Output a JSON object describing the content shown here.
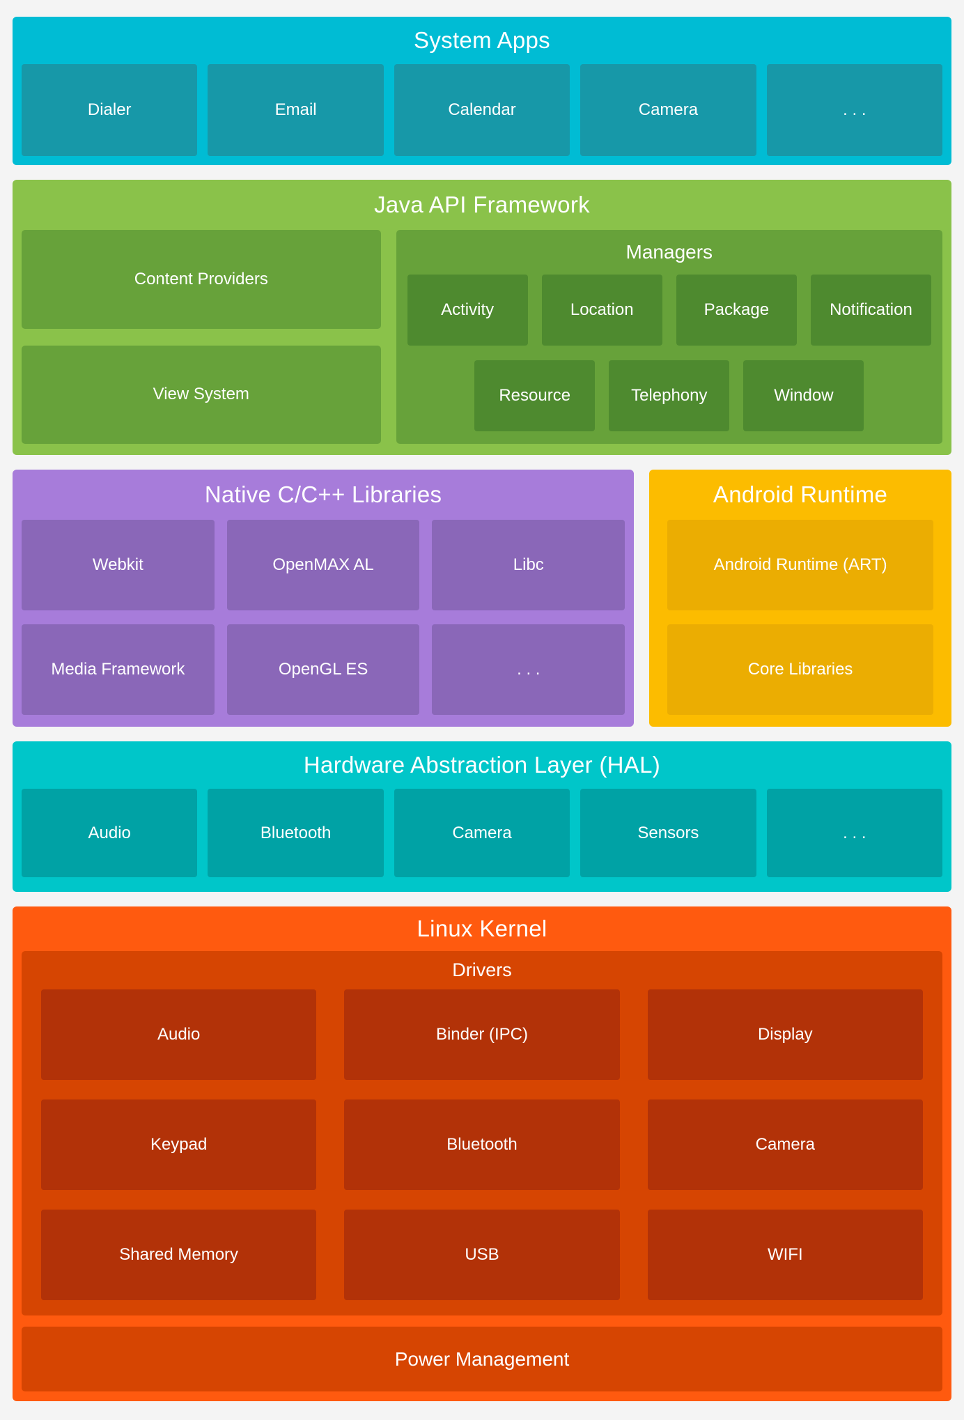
{
  "page": {
    "background": "#f4f4f4"
  },
  "sections": {
    "system_apps": {
      "title": "System Apps",
      "colors": {
        "bg": "#00bcd4",
        "box": "#1798a8"
      },
      "boxes": [
        "Dialer",
        "Email",
        "Calendar",
        "Camera",
        ". . ."
      ]
    },
    "java_api": {
      "title": "Java API Framework",
      "colors": {
        "bg": "#8ac24a",
        "panel": "#67a23a",
        "box": "#4e8a2f"
      },
      "left_boxes": [
        "Content Providers",
        "View System"
      ],
      "managers": {
        "title": "Managers",
        "row1": [
          "Activity",
          "Location",
          "Package",
          "Notification"
        ],
        "row2": [
          "Resource",
          "Telephony",
          "Window"
        ]
      }
    },
    "native_libs": {
      "title": "Native C/C++ Libraries",
      "colors": {
        "bg": "#a77cda",
        "box": "#8a67b8"
      },
      "row1": [
        "Webkit",
        "OpenMAX AL",
        "Libc"
      ],
      "row2": [
        "Media Framework",
        "OpenGL ES",
        ". . ."
      ]
    },
    "android_runtime": {
      "title": "Android Runtime",
      "colors": {
        "bg": "#fcbc00",
        "box": "#ebad02"
      },
      "boxes": [
        "Android Runtime (ART)",
        "Core Libraries"
      ]
    },
    "hal": {
      "title": "Hardware Abstraction Layer (HAL)",
      "colors": {
        "bg": "#00c6c9",
        "box": "#00a2a5"
      },
      "boxes": [
        "Audio",
        "Bluetooth",
        "Camera",
        "Sensors",
        ". . ."
      ]
    },
    "linux_kernel": {
      "title": "Linux Kernel",
      "colors": {
        "bg": "#ff5a0f",
        "panel": "#d64502",
        "box": "#b23208"
      },
      "drivers": {
        "title": "Drivers",
        "rows": [
          [
            "Audio",
            "Binder (IPC)",
            "Display"
          ],
          [
            "Keypad",
            "Bluetooth",
            "Camera"
          ],
          [
            "Shared Memory",
            "USB",
            "WIFI"
          ]
        ]
      },
      "power": "Power Management"
    }
  }
}
